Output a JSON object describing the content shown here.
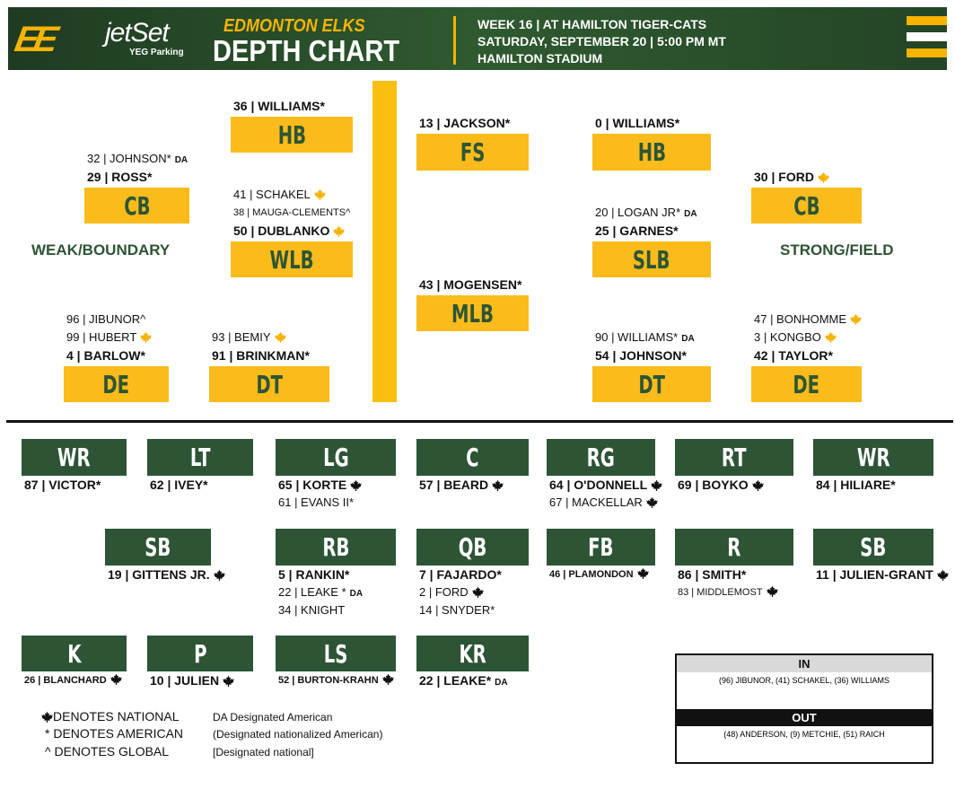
{
  "header": {
    "logo": "EE",
    "sponsor": "jetSet",
    "sponsor_sub": "YEG Parking",
    "team": "EDMONTON ELKS",
    "title": "DEPTH CHART",
    "line1": "WEEK 16 | AT HAMILTON TIGER-CATS",
    "line2": "SATURDAY, SEPTEMBER 20 | 5:00 PM MT",
    "line3": "HAMILTON STADIUM"
  },
  "colors": {
    "green": "#2d5535",
    "gold": "#fbbb1a"
  },
  "defense": {
    "weak_label": "WEAK/BOUNDARY",
    "strong_label": "STRONG/FIELD",
    "positions": [
      {
        "id": "cb-left",
        "pos": "CB",
        "players": [
          {
            "t": "32 | JOHNSON*",
            "da": "DA"
          },
          {
            "t": "29 | ROSS*",
            "b": true
          }
        ]
      },
      {
        "id": "hb-left",
        "pos": "HB",
        "players": [
          {
            "t": "36 | WILLIAMS*",
            "b": true
          }
        ]
      },
      {
        "id": "wlb",
        "pos": "WLB",
        "players": [
          {
            "t": "41 | SCHAKEL",
            "leaf": true
          },
          {
            "t": "38 | MAUGA-CLEMENTS^",
            "sm": true
          },
          {
            "t": "50 | DUBLANKO",
            "b": true,
            "leaf": true
          }
        ]
      },
      {
        "id": "de-left",
        "pos": "DE",
        "players": [
          {
            "t": "96 | JIBUNOR^"
          },
          {
            "t": "99 | HUBERT",
            "leaf": true
          },
          {
            "t": "4 | BARLOW*",
            "b": true
          }
        ]
      },
      {
        "id": "dt-left",
        "pos": "DT",
        "players": [
          {
            "t": "93 | BEMIY",
            "leaf": true
          },
          {
            "t": "91 | BRINKMAN*",
            "b": true
          }
        ]
      },
      {
        "id": "fs",
        "pos": "FS",
        "players": [
          {
            "t": "13 | JACKSON*",
            "b": true
          }
        ]
      },
      {
        "id": "mlb",
        "pos": "MLB",
        "players": [
          {
            "t": "43 | MOGENSEN*",
            "b": true
          }
        ]
      },
      {
        "id": "hb-right",
        "pos": "HB",
        "players": [
          {
            "t": "0 | WILLIAMS*",
            "b": true
          }
        ]
      },
      {
        "id": "slb",
        "pos": "SLB",
        "players": [
          {
            "t": "20 | LOGAN JR*",
            "da": "DA"
          },
          {
            "t": "25 | GARNES*",
            "b": true
          }
        ]
      },
      {
        "id": "dt-right",
        "pos": "DT",
        "players": [
          {
            "t": "90 | WILLIAMS*",
            "da": "DA"
          },
          {
            "t": "54 | JOHNSON*",
            "b": true
          }
        ]
      },
      {
        "id": "cb-right",
        "pos": "CB",
        "players": [
          {
            "t": "30 | FORD",
            "b": true,
            "leaf": true
          }
        ]
      },
      {
        "id": "de-right",
        "pos": "DE",
        "players": [
          {
            "t": "47 | BONHOMME",
            "leaf": true
          },
          {
            "t": "3 | KONGBO",
            "leaf": true
          },
          {
            "t": "42 | TAYLOR*",
            "b": true
          }
        ]
      }
    ]
  },
  "offense": {
    "positions": [
      {
        "id": "wr-left",
        "pos": "WR",
        "players": [
          {
            "t": "87 | VICTOR*",
            "b": true
          }
        ]
      },
      {
        "id": "lt",
        "pos": "LT",
        "players": [
          {
            "t": "62 | IVEY*",
            "b": true
          }
        ]
      },
      {
        "id": "lg",
        "pos": "LG",
        "players": [
          {
            "t": "65 | KORTE",
            "b": true,
            "leaf": true
          },
          {
            "t": "61 | EVANS II*"
          }
        ]
      },
      {
        "id": "c",
        "pos": "C",
        "players": [
          {
            "t": "57 | BEARD",
            "b": true,
            "leaf": true
          }
        ]
      },
      {
        "id": "rg",
        "pos": "RG",
        "players": [
          {
            "t": "64 | O'DONNELL",
            "b": true,
            "leaf": true
          },
          {
            "t": "67 | MACKELLAR",
            "leaf": true
          }
        ]
      },
      {
        "id": "rt",
        "pos": "RT",
        "players": [
          {
            "t": "69 | BOYKO",
            "b": true,
            "leaf": true
          }
        ]
      },
      {
        "id": "wr-right",
        "pos": "WR",
        "players": [
          {
            "t": "84 | HILIARE*",
            "b": true
          }
        ]
      },
      {
        "id": "sb-left",
        "pos": "SB",
        "players": [
          {
            "t": "19 | GITTENS JR.",
            "b": true,
            "leaf": true
          }
        ]
      },
      {
        "id": "rb",
        "pos": "RB",
        "players": [
          {
            "t": "5 | RANKIN*",
            "b": true
          },
          {
            "t": "22 | LEAKE *",
            "da": "DA"
          },
          {
            "t": "34 | KNIGHT"
          }
        ]
      },
      {
        "id": "qb",
        "pos": "QB",
        "players": [
          {
            "t": "7 | FAJARDO*",
            "b": true
          },
          {
            "t": "2 | FORD",
            "leaf": true
          },
          {
            "t": "14 | SNYDER*"
          }
        ]
      },
      {
        "id": "fb",
        "pos": "FB",
        "players": [
          {
            "t": "46 | PLAMONDON",
            "b": true,
            "sm": true,
            "leaf": true
          }
        ]
      },
      {
        "id": "r",
        "pos": "R",
        "players": [
          {
            "t": "86 | SMITH*",
            "b": true
          },
          {
            "t": "83 | MIDDLEMOST",
            "sm": true,
            "leaf": true
          }
        ]
      },
      {
        "id": "sb-right",
        "pos": "SB",
        "players": [
          {
            "t": "11 | JULIEN-GRANT",
            "b": true,
            "leaf": true
          }
        ]
      },
      {
        "id": "k",
        "pos": "K",
        "players": [
          {
            "t": "26 | BLANCHARD",
            "b": true,
            "sm": true,
            "leaf": true
          }
        ]
      },
      {
        "id": "p",
        "pos": "P",
        "players": [
          {
            "t": "10 | JULIEN",
            "b": true,
            "leaf": true
          }
        ]
      },
      {
        "id": "ls",
        "pos": "LS",
        "players": [
          {
            "t": "52 | BURTON-KRAHN",
            "b": true,
            "sm": true,
            "leaf": true
          }
        ]
      },
      {
        "id": "kr",
        "pos": "KR",
        "players": [
          {
            "t": "22 | LEAKE*",
            "b": true,
            "da": "DA"
          }
        ]
      }
    ]
  },
  "legend": {
    "national": "DENOTES NATIONAL",
    "american": "* DENOTES AMERICAN",
    "global": "^ DENOTES GLOBAL",
    "da": "DA Designated American",
    "nat_american": "(Designated nationalized American)",
    "designated_national": "[Designated national]"
  },
  "roster_moves": {
    "in_label": "IN",
    "in_list": "(96) JIBUNOR, (41) SCHAKEL, (36) WILLIAMS",
    "out_label": "OUT",
    "out_list": "(48) ANDERSON, (9) METCHIE, (51) RAICH"
  }
}
